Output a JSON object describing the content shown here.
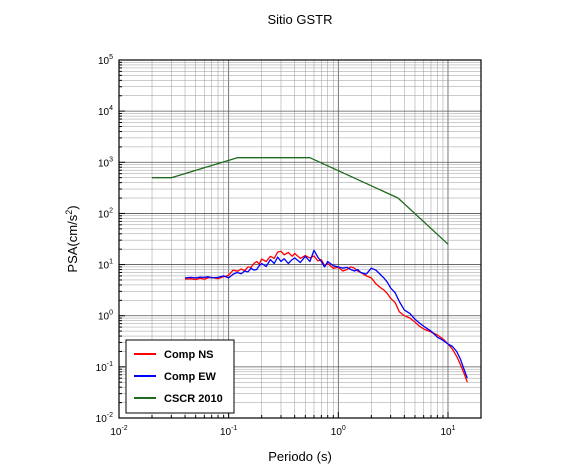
{
  "chart_data": {
    "type": "line",
    "title": "Sitio GSTR",
    "xlabel": "Periodo (s)",
    "ylabel": "PSA(cm/s",
    "ylabel_exp": "2",
    "ylabel_close": ")",
    "x_scale": "log",
    "y_scale": "log",
    "xlim": [
      0.01,
      20
    ],
    "ylim": [
      0.01,
      100000
    ],
    "grid": true,
    "legend_position": "bottom-left",
    "x_ticks": [
      {
        "base": "10",
        "exp": "-2"
      },
      {
        "base": "10",
        "exp": "-1"
      },
      {
        "base": "10",
        "exp": "0"
      },
      {
        "base": "10",
        "exp": "1"
      }
    ],
    "y_ticks": [
      {
        "base": "10",
        "exp": "-2"
      },
      {
        "base": "10",
        "exp": "-1"
      },
      {
        "base": "10",
        "exp": "0"
      },
      {
        "base": "10",
        "exp": "1"
      },
      {
        "base": "10",
        "exp": "2"
      },
      {
        "base": "10",
        "exp": "3"
      },
      {
        "base": "10",
        "exp": "4"
      },
      {
        "base": "10",
        "exp": "5"
      }
    ],
    "series": [
      {
        "name": "Comp NS",
        "color": "#ff0000",
        "x": [
          0.04,
          0.045,
          0.05,
          0.055,
          0.06,
          0.065,
          0.07,
          0.08,
          0.09,
          0.1,
          0.11,
          0.12,
          0.13,
          0.14,
          0.15,
          0.16,
          0.17,
          0.18,
          0.19,
          0.2,
          0.22,
          0.24,
          0.26,
          0.28,
          0.3,
          0.32,
          0.35,
          0.38,
          0.4,
          0.45,
          0.5,
          0.55,
          0.6,
          0.65,
          0.7,
          0.75,
          0.8,
          0.9,
          1.0,
          1.1,
          1.2,
          1.3,
          1.4,
          1.5,
          1.6,
          1.8,
          2.0,
          2.2,
          2.4,
          2.6,
          2.8,
          3.0,
          3.3,
          3.6,
          4.0,
          4.5,
          5.0,
          5.5,
          6.0,
          7.0,
          8.0,
          9.0,
          10.0,
          11.0,
          12.0,
          13.0,
          14.0,
          15.0
        ],
        "y": [
          5.2,
          5.3,
          5.1,
          5.4,
          5.2,
          5.5,
          5.6,
          5.3,
          5.8,
          6.2,
          7.8,
          7.4,
          8.2,
          7.6,
          9.0,
          8.8,
          10.5,
          11.5,
          10.2,
          12.8,
          11.5,
          14.5,
          13.2,
          17.5,
          18.2,
          15.5,
          17.2,
          14.5,
          16.5,
          13.2,
          15.0,
          13.5,
          14.8,
          11.8,
          12.5,
          9.5,
          10.5,
          8.5,
          8.8,
          7.5,
          8.0,
          9.0,
          8.5,
          7.5,
          7.0,
          6.0,
          5.5,
          4.2,
          3.6,
          3.2,
          2.7,
          2.2,
          1.8,
          1.2,
          1.0,
          0.9,
          0.75,
          0.62,
          0.55,
          0.48,
          0.42,
          0.35,
          0.28,
          0.22,
          0.16,
          0.11,
          0.075,
          0.05
        ]
      },
      {
        "name": "Comp EW",
        "color": "#0000ff",
        "x": [
          0.04,
          0.045,
          0.05,
          0.055,
          0.06,
          0.065,
          0.07,
          0.08,
          0.09,
          0.1,
          0.11,
          0.12,
          0.13,
          0.14,
          0.15,
          0.16,
          0.17,
          0.18,
          0.19,
          0.2,
          0.22,
          0.24,
          0.26,
          0.28,
          0.3,
          0.32,
          0.35,
          0.38,
          0.4,
          0.45,
          0.5,
          0.55,
          0.6,
          0.65,
          0.7,
          0.75,
          0.8,
          0.9,
          1.0,
          1.1,
          1.2,
          1.3,
          1.4,
          1.5,
          1.6,
          1.8,
          2.0,
          2.2,
          2.4,
          2.6,
          2.8,
          3.0,
          3.3,
          3.6,
          4.0,
          4.5,
          5.0,
          5.5,
          6.0,
          7.0,
          8.0,
          9.0,
          10.0,
          11.0,
          12.0,
          13.0,
          14.0,
          15.0
        ],
        "y": [
          5.5,
          5.6,
          5.5,
          5.7,
          5.6,
          5.8,
          5.5,
          5.6,
          6.0,
          5.5,
          6.5,
          7.0,
          6.6,
          7.5,
          7.2,
          8.5,
          7.8,
          8.0,
          9.5,
          10.5,
          9.2,
          12.5,
          10.5,
          14.0,
          11.5,
          13.0,
          10.5,
          12.5,
          13.5,
          11.0,
          14.5,
          11.5,
          19.0,
          14.0,
          11.5,
          9.0,
          11.5,
          9.5,
          9.0,
          8.5,
          8.8,
          8.0,
          7.5,
          8.0,
          7.0,
          6.5,
          8.5,
          7.8,
          6.5,
          5.5,
          4.5,
          3.5,
          2.8,
          1.9,
          1.3,
          1.1,
          0.85,
          0.72,
          0.62,
          0.5,
          0.38,
          0.33,
          0.28,
          0.25,
          0.2,
          0.14,
          0.09,
          0.06
        ]
      },
      {
        "name": "CSCR 2010",
        "color": "#1e6b1e",
        "x": [
          0.02,
          0.03,
          0.12,
          0.55,
          3.5,
          10.0
        ],
        "y": [
          500,
          500,
          1230,
          1230,
          200,
          25
        ]
      }
    ]
  }
}
